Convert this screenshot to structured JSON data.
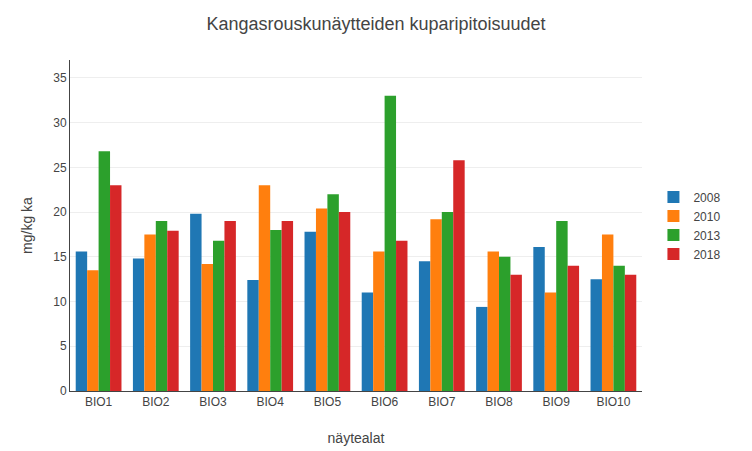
{
  "chart_data": {
    "type": "bar",
    "title": "Kangasrouskunäytteiden kuparipitoisuudet",
    "xlabel": "näytealat",
    "ylabel": "mg/kg ka",
    "categories": [
      "BIO1",
      "BIO2",
      "BIO3",
      "BIO4",
      "BIO5",
      "BIO6",
      "BIO7",
      "BIO8",
      "BIO9",
      "BIO10"
    ],
    "series": [
      {
        "name": "2008",
        "values": [
          15.6,
          14.8,
          19.8,
          12.4,
          17.8,
          11.0,
          14.5,
          9.4,
          16.1,
          12.5
        ]
      },
      {
        "name": "2010",
        "values": [
          13.5,
          17.5,
          14.2,
          23.0,
          20.4,
          15.6,
          19.2,
          15.6,
          11.0,
          17.5
        ]
      },
      {
        "name": "2013",
        "values": [
          26.8,
          19.0,
          16.8,
          18.0,
          22.0,
          33.0,
          20.0,
          15.0,
          19.0,
          14.0
        ]
      },
      {
        "name": "2018",
        "values": [
          23.0,
          17.9,
          19.0,
          19.0,
          20.0,
          16.8,
          25.8,
          13.0,
          14.0,
          13.0
        ]
      }
    ],
    "ylim": [
      0,
      37
    ],
    "yticks": [
      0,
      5,
      10,
      15,
      20,
      25,
      30,
      35
    ],
    "grid": true,
    "legend": "right"
  }
}
